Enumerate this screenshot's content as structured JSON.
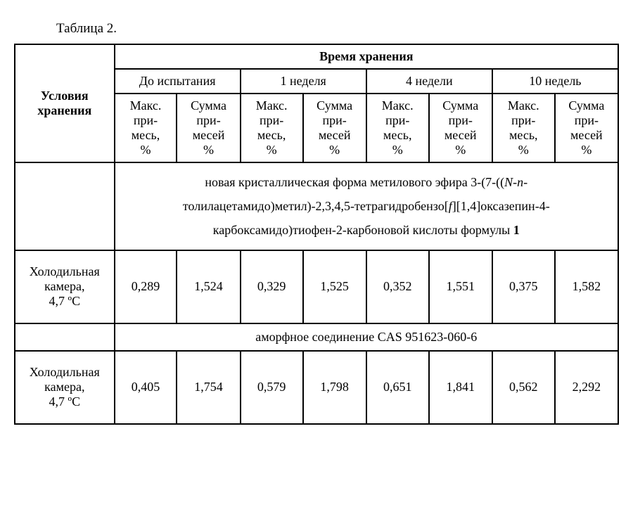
{
  "caption": "Таблица 2.",
  "header": {
    "row_label": "Условия хранения",
    "top": "Время хранения",
    "periods": [
      "До испытания",
      "1 неделя",
      "4 недели",
      "10 недель"
    ],
    "sub_max_l1": "Макс.",
    "sub_max_l2": "при-",
    "sub_max_l3": "месь,",
    "sub_max_l4": "%",
    "sub_sum_l1": "Сумма",
    "sub_sum_l2": "при-",
    "sub_sum_l3": "месей",
    "sub_sum_l4": "%"
  },
  "section1": {
    "l1a": "новая кристаллическая форма метилового эфира 3-(7-((",
    "l1b": "N-n",
    "l1c": "-",
    "l2a": "толилацетамидо)метил)-2,3,4,5-тетрагидробензо[",
    "l2b": "f",
    "l2c": "][1,4]оксазепин-4-",
    "l3": "карбоксамидо)тиофен-2-карбоновой кислоты формулы ",
    "l3b": "1"
  },
  "row1": {
    "label_l1": "Холодильная",
    "label_l2": "камера,",
    "label_l3": "4,7 ºC",
    "v": [
      "0,289",
      "1,524",
      "0,329",
      "1,525",
      "0,352",
      "1,551",
      "0,375",
      "1,582"
    ]
  },
  "section2": "аморфное соединение CAS 951623-060-6",
  "row2": {
    "label_l1": "Холодильная",
    "label_l2": "камера,",
    "label_l3": "4,7 ºC",
    "v": [
      "0,405",
      "1,754",
      "0,579",
      "1,798",
      "0,651",
      "1,841",
      "0,562",
      "2,292"
    ]
  }
}
